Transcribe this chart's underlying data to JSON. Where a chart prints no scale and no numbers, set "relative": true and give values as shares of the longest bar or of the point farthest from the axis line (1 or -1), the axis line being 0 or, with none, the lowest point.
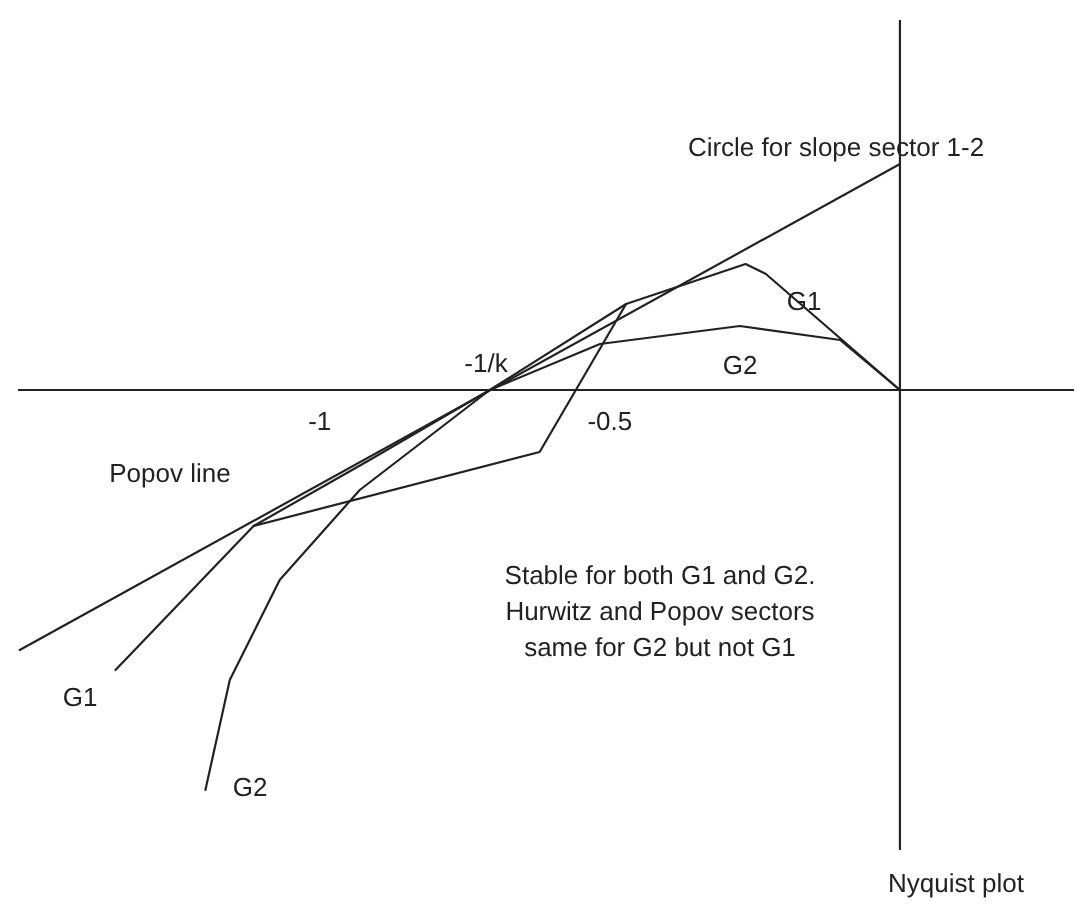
{
  "chart_data": {
    "type": "line",
    "relative": true,
    "xlim": [
      -1.52,
      0.3
    ],
    "xticks": [
      -1,
      -0.5
    ],
    "line_style": "solid",
    "grid": false,
    "series": [
      {
        "color": "#222222",
        "x": [
          -1.517,
          0
        ],
        "values": [
          -0.65,
          0.565
        ]
      },
      {
        "color": "#222222",
        "x": [
          -1.114,
          -0.914,
          -0.707,
          -0.472
        ],
        "values": [
          -0.34,
          -0.175,
          0,
          0.215
        ]
      },
      {
        "color": "#222222",
        "x": [
          -1.352,
          -1.114,
          -0.621,
          -0.472,
          -0.266,
          -0.231,
          0
        ],
        "values": [
          -0.7,
          -0.34,
          -0.155,
          0.215,
          0.315,
          0.29,
          0
        ]
      },
      {
        "color": "#222222",
        "x": [
          -1.197,
          -1.155,
          -1.069,
          -0.931,
          -0.707,
          -0.517,
          -0.276,
          -0.103,
          0
        ],
        "values": [
          -1,
          -0.725,
          -0.475,
          -0.25,
          0,
          0.115,
          0.16,
          0.125,
          0
        ]
      }
    ],
    "ref_lines": [
      {
        "axis": "x",
        "value": 0,
        "color": "#222222"
      }
    ],
    "annotations": [
      "Circle for slope sector 1-2",
      "G1",
      "G2",
      "-1/k",
      "Popov line",
      "G1",
      "G2",
      "Stable for both G1 and G2.\nHurwitz and Popov sectors\nsame for G2 but not G1",
      "Nyquist plot"
    ]
  }
}
